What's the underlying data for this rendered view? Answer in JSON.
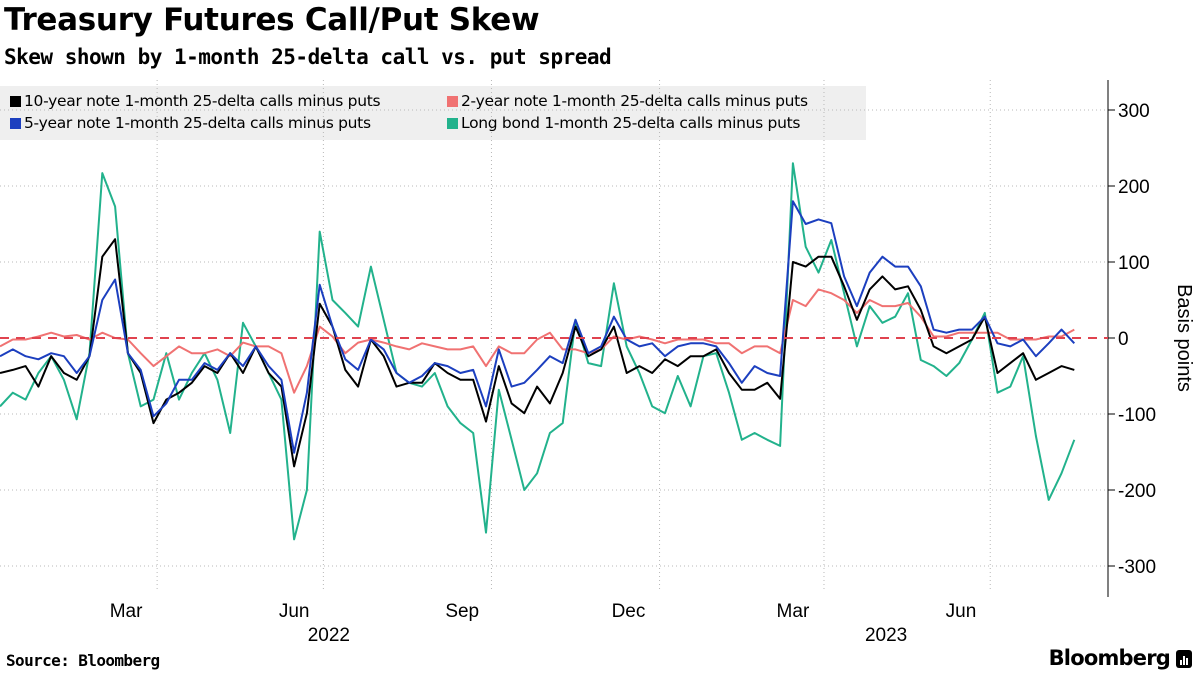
{
  "header": {
    "title": "Treasury Futures Call/Put Skew",
    "subtitle": "Skew shown by 1-month 25-delta call vs. put spread"
  },
  "footer": {
    "source": "Source: Bloomberg",
    "brand": "Bloomberg"
  },
  "chart_data": {
    "type": "line",
    "title": "Treasury Futures Call/Put Skew",
    "subtitle": "Skew shown by 1-month 25-delta call vs. put spread",
    "ylabel": "Basis points",
    "xlabel": "",
    "ylim": [
      -360,
      340
    ],
    "yticks": [
      300,
      200,
      100,
      0,
      -100,
      -200,
      -300
    ],
    "ytick_labels": [
      "300",
      "200",
      "100",
      "0",
      "-100",
      "-200",
      "-300"
    ],
    "x_range": [
      "2022-01-05",
      "2023-08-21"
    ],
    "xtick_labels": [
      {
        "label": "Mar",
        "date": "2022-03-15"
      },
      {
        "label": "Jun",
        "date": "2022-06-15"
      },
      {
        "label": "Sep",
        "date": "2022-09-15"
      },
      {
        "label": "Dec",
        "date": "2022-12-15"
      },
      {
        "label": "Mar",
        "date": "2023-03-15"
      },
      {
        "label": "Jun",
        "date": "2023-06-15"
      }
    ],
    "gridline_dates": [
      "2022-04-01",
      "2022-07-01",
      "2022-10-01",
      "2023-01-01",
      "2023-04-01",
      "2023-07-01"
    ],
    "year_labels": [
      {
        "label": "2022",
        "date": "2022-07-04"
      },
      {
        "label": "2023",
        "date": "2023-05-05"
      }
    ],
    "reference_line": {
      "value": 0,
      "style": "dashed",
      "color": "#e0434f"
    },
    "grid": true,
    "legend_position": "top-left",
    "start_date": "2022-01-05",
    "step_days": 7,
    "series": [
      {
        "name": "10-year note 1-month 25-delta calls minus puts",
        "color": "#000000",
        "values": [
          -46,
          -42,
          -37,
          -64,
          -24,
          -46,
          -55,
          -24,
          107,
          130,
          -20,
          -46,
          -112,
          -81,
          -72,
          -59,
          -37,
          -46,
          -20,
          -46,
          -11,
          -46,
          -64,
          -169,
          -99,
          45,
          15,
          -42,
          -64,
          -2,
          -24,
          -64,
          -59,
          -59,
          -33,
          -46,
          -55,
          -55,
          -110,
          -37,
          -86,
          -99,
          -64,
          -86,
          -46,
          15,
          -24,
          -15,
          15,
          -46,
          -37,
          -46,
          -28,
          -37,
          -24,
          -24,
          -15,
          -46,
          -68,
          -68,
          -59,
          -80,
          100,
          94,
          107,
          107,
          68,
          24,
          64,
          81,
          64,
          68,
          37,
          -11,
          -20,
          -11,
          -2,
          28,
          -46,
          -33,
          -20,
          -55,
          -46,
          -37,
          -42
        ]
      },
      {
        "name": "2-year note 1-month 25-delta calls minus puts",
        "color": "#f07272",
        "values": [
          -11,
          -2,
          -2,
          2,
          7,
          2,
          4,
          -2,
          7,
          0,
          -2,
          -20,
          -37,
          -24,
          -11,
          -20,
          -20,
          -15,
          -24,
          -6,
          -11,
          -11,
          -20,
          -72,
          -37,
          15,
          2,
          -20,
          -6,
          -2,
          -6,
          -11,
          -15,
          -7,
          -11,
          -15,
          -15,
          -11,
          -37,
          -11,
          -20,
          -20,
          -2,
          7,
          -15,
          -15,
          -20,
          -15,
          2,
          -2,
          2,
          -2,
          -7,
          -2,
          -2,
          -2,
          -7,
          -7,
          -20,
          -11,
          -11,
          -20,
          50,
          42,
          64,
          59,
          50,
          33,
          50,
          42,
          42,
          46,
          28,
          2,
          2,
          7,
          7,
          7,
          7,
          -2,
          -2,
          -2,
          2,
          2,
          11
        ]
      },
      {
        "name": "5-year note 1-month 25-delta calls minus puts",
        "color": "#1c3fbf",
        "values": [
          -24,
          -15,
          -24,
          -28,
          -20,
          -24,
          -46,
          -24,
          50,
          77,
          -20,
          -42,
          -103,
          -86,
          -55,
          -55,
          -33,
          -42,
          -20,
          -37,
          -11,
          -37,
          -55,
          -151,
          -72,
          70,
          15,
          -28,
          -42,
          -2,
          -15,
          -46,
          -59,
          -50,
          -33,
          -37,
          -46,
          -42,
          -90,
          -15,
          -64,
          -59,
          -42,
          -24,
          -33,
          24,
          -20,
          -11,
          28,
          -2,
          -11,
          -7,
          -24,
          -11,
          -7,
          -7,
          -11,
          -33,
          -59,
          -37,
          -46,
          -50,
          180,
          150,
          156,
          151,
          81,
          42,
          86,
          107,
          94,
          94,
          68,
          11,
          7,
          11,
          11,
          28,
          -7,
          -11,
          -2,
          -24,
          -7,
          11,
          -7
        ]
      },
      {
        "name": "Long bond 1-month 25-delta calls minus puts",
        "color": "#22b28c",
        "values": [
          -90,
          -72,
          -81,
          -46,
          -24,
          -55,
          -107,
          -20,
          217,
          173,
          -20,
          -90,
          -81,
          -20,
          -81,
          -46,
          -20,
          -55,
          -125,
          20,
          -11,
          -46,
          -81,
          -265,
          -200,
          140,
          50,
          33,
          15,
          94,
          24,
          -46,
          -59,
          -64,
          -46,
          -90,
          -112,
          -125,
          -256,
          -68,
          -134,
          -200,
          -178,
          -125,
          -112,
          24,
          -33,
          -37,
          72,
          -11,
          -46,
          -90,
          -99,
          -50,
          -90,
          -24,
          -20,
          -72,
          -134,
          -125,
          -134,
          -142,
          230,
          120,
          86,
          129,
          59,
          -11,
          42,
          20,
          28,
          59,
          -29,
          -37,
          -50,
          -33,
          -2,
          33,
          -72,
          -64,
          -24,
          -129,
          -213,
          -178,
          -134
        ]
      }
    ]
  }
}
